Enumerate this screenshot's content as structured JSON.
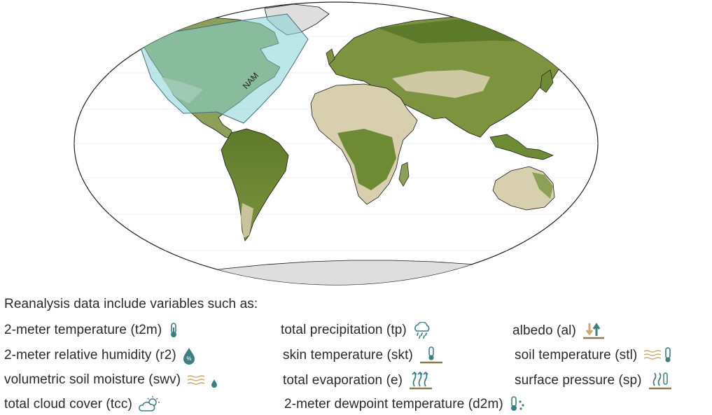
{
  "map": {
    "region_label": "NAM",
    "colors": {
      "ocean": "#ffffff",
      "land_desert": "#e6dcc6",
      "land_veg_light": "#b7bf87",
      "land_veg_dark": "#5d7a2a",
      "antarctica": "#dedede",
      "region_fill": "#86d1d6",
      "region_stroke": "#4a6b7a",
      "coastline": "#1a1a1a"
    }
  },
  "legend": {
    "intro": "Reanalysis data include variables such as:",
    "icon_color": "#3e7f82",
    "ground_color": "#8b7a4a",
    "variables": [
      {
        "label": "2-meter temperature (t2m)",
        "icon": "thermometer-icon"
      },
      {
        "label": "total precipitation (tp)",
        "icon": "rain-cloud-icon"
      },
      {
        "label": "albedo (al)",
        "icon": "albedo-arrows-icon"
      },
      {
        "label": "2-meter relative humidity (r2)",
        "icon": "humidity-drop-icon"
      },
      {
        "label": "skin temperature (skt)",
        "icon": "skin-thermometer-icon"
      },
      {
        "label": "soil temperature (stl)",
        "icon": "soil-thermometer-icon"
      },
      {
        "label": "volumetric soil moisture (swv)",
        "icon": "soil-moisture-icon"
      },
      {
        "label": "total evaporation (e)",
        "icon": "evaporation-icon"
      },
      {
        "label": "surface pressure (sp)",
        "icon": "pressure-icon"
      },
      {
        "label": "total cloud cover (tcc)",
        "icon": "cloud-sun-icon"
      },
      {
        "label": "2-meter dewpoint temperature (d2m)",
        "icon": "dewpoint-thermometer-icon"
      }
    ]
  }
}
